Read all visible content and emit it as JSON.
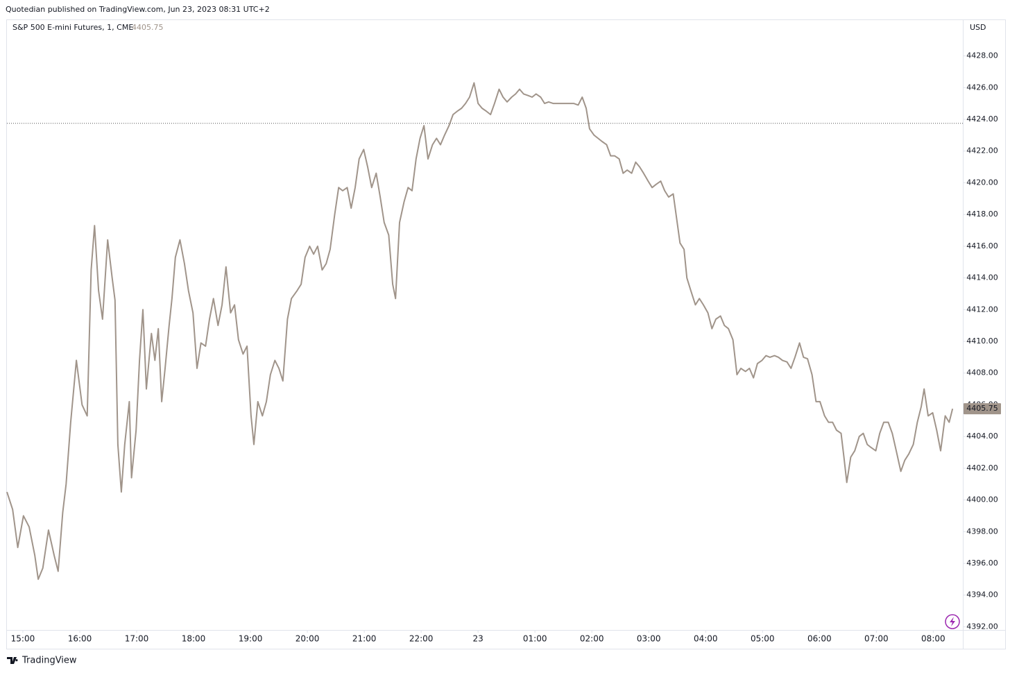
{
  "header": "Quotedian published on TradingView.com, Jun 23, 2023 08:31 UTC+2",
  "footer": "TradingView",
  "chart_data": {
    "type": "line",
    "title": "S&P 500 E-mini Futures, 1, CME",
    "currency": "USD",
    "last_price": 4405.75,
    "reference_line": 4423.75,
    "color": "#a0948a",
    "xlim": [
      -0.28,
      16.52
    ],
    "ylim": [
      4391.8,
      4430.3
    ],
    "xticks": [
      {
        "value": 0,
        "label": "15:00"
      },
      {
        "value": 1,
        "label": "16:00"
      },
      {
        "value": 2,
        "label": "17:00"
      },
      {
        "value": 3,
        "label": "18:00"
      },
      {
        "value": 4,
        "label": "19:00"
      },
      {
        "value": 5,
        "label": "20:00"
      },
      {
        "value": 6,
        "label": "21:00"
      },
      {
        "value": 7,
        "label": "22:00"
      },
      {
        "value": 8,
        "label": "23"
      },
      {
        "value": 9,
        "label": "01:00"
      },
      {
        "value": 10,
        "label": "02:00"
      },
      {
        "value": 11,
        "label": "03:00"
      },
      {
        "value": 12,
        "label": "04:00"
      },
      {
        "value": 13,
        "label": "05:00"
      },
      {
        "value": 14,
        "label": "06:00"
      },
      {
        "value": 15,
        "label": "07:00"
      },
      {
        "value": 16,
        "label": "08:00"
      }
    ],
    "yticks": [
      {
        "value": 4392,
        "label": "4392.00"
      },
      {
        "value": 4394,
        "label": "4394.00"
      },
      {
        "value": 4396,
        "label": "4396.00"
      },
      {
        "value": 4398,
        "label": "4398.00"
      },
      {
        "value": 4400,
        "label": "4400.00"
      },
      {
        "value": 4402,
        "label": "4402.00"
      },
      {
        "value": 4404,
        "label": "4404.00"
      },
      {
        "value": 4406,
        "label": "4406.00"
      },
      {
        "value": 4408,
        "label": "4408.00"
      },
      {
        "value": 4410,
        "label": "4410.00"
      },
      {
        "value": 4412,
        "label": "4412.00"
      },
      {
        "value": 4414,
        "label": "4414.00"
      },
      {
        "value": 4416,
        "label": "4416.00"
      },
      {
        "value": 4418,
        "label": "4418.00"
      },
      {
        "value": 4420,
        "label": "4420.00"
      },
      {
        "value": 4422,
        "label": "4422.00"
      },
      {
        "value": 4424,
        "label": "4424.00"
      },
      {
        "value": 4426,
        "label": "4426.00"
      },
      {
        "value": 4428,
        "label": "4428.00"
      }
    ],
    "x": [
      -0.28,
      -0.18,
      -0.09,
      0.01,
      0.11,
      0.21,
      0.27,
      0.35,
      0.45,
      0.55,
      0.62,
      0.7,
      0.76,
      0.84,
      0.94,
      1.04,
      1.13,
      1.2,
      1.26,
      1.33,
      1.4,
      1.49,
      1.57,
      1.62,
      1.67,
      1.73,
      1.79,
      1.87,
      1.91,
      1.99,
      2.05,
      2.11,
      2.17,
      2.26,
      2.32,
      2.38,
      2.44,
      2.5,
      2.57,
      2.62,
      2.68,
      2.76,
      2.84,
      2.91,
      2.99,
      3.06,
      3.13,
      3.21,
      3.28,
      3.35,
      3.43,
      3.5,
      3.57,
      3.65,
      3.72,
      3.79,
      3.87,
      3.94,
      4.01,
      4.06,
      4.13,
      4.21,
      4.28,
      4.35,
      4.43,
      4.5,
      4.57,
      4.65,
      4.72,
      4.82,
      4.89,
      4.96,
      5.04,
      5.11,
      5.18,
      5.26,
      5.33,
      5.4,
      5.48,
      5.55,
      5.62,
      5.7,
      5.77,
      5.84,
      5.91,
      5.99,
      6.06,
      6.13,
      6.21,
      6.28,
      6.35,
      6.43,
      6.5,
      6.55,
      6.62,
      6.7,
      6.77,
      6.84,
      6.91,
      6.98,
      7.05,
      7.12,
      7.2,
      7.27,
      7.34,
      7.41,
      7.49,
      7.56,
      7.63,
      7.71,
      7.78,
      7.85,
      7.93,
      8.0,
      8.07,
      8.15,
      8.22,
      8.29,
      8.37,
      8.44,
      8.51,
      8.59,
      8.66,
      8.73,
      8.8,
      8.88,
      8.95,
      9.02,
      9.1,
      9.17,
      9.24,
      9.32,
      9.39,
      9.46,
      9.54,
      9.61,
      9.68,
      9.76,
      9.83,
      9.9,
      9.96,
      10.04,
      10.11,
      10.18,
      10.26,
      10.33,
      10.4,
      10.48,
      10.55,
      10.62,
      10.7,
      10.77,
      10.84,
      10.91,
      10.99,
      11.06,
      11.13,
      11.21,
      11.28,
      11.35,
      11.43,
      11.5,
      11.55,
      11.62,
      11.67,
      11.74,
      11.82,
      11.89,
      11.96,
      12.04,
      12.11,
      12.18,
      12.26,
      12.33,
      12.4,
      12.48,
      12.55,
      12.62,
      12.7,
      12.77,
      12.84,
      12.91,
      12.99,
      13.06,
      13.13,
      13.21,
      13.28,
      13.35,
      13.43,
      13.5,
      13.57,
      13.65,
      13.72,
      13.79,
      13.87,
      13.94,
      14.01,
      14.09,
      14.16,
      14.23,
      14.3,
      14.38,
      14.43,
      14.48,
      14.55,
      14.62,
      14.7,
      14.77,
      14.84,
      14.91,
      14.99,
      15.06,
      15.13,
      15.21,
      15.28,
      15.35,
      15.43,
      15.5,
      15.57,
      15.65,
      15.72,
      15.79,
      15.84,
      15.91,
      15.99,
      16.06,
      16.13,
      16.21,
      16.28,
      16.34
    ],
    "values": [
      4400.5,
      4399.4,
      4397,
      4399,
      4398.3,
      4396.5,
      4395,
      4395.7,
      4398.1,
      4396.5,
      4395.5,
      4399.2,
      4401,
      4404.9,
      4408.8,
      4406,
      4405.3,
      4414.5,
      4417.3,
      4413.2,
      4411.4,
      4416.4,
      4414,
      4412.6,
      4403.5,
      4400.5,
      4403.5,
      4406.2,
      4401.4,
      4404.4,
      4408.8,
      4412,
      4407,
      4410.5,
      4408.8,
      4410.8,
      4406.2,
      4408.3,
      4411,
      4412.7,
      4415.3,
      4416.4,
      4414.9,
      4413.2,
      4411.8,
      4408.3,
      4409.9,
      4409.7,
      4411.4,
      4412.7,
      4411,
      4412.3,
      4414.7,
      4411.8,
      4412.3,
      4410.1,
      4409.2,
      4409.7,
      4405.3,
      4403.5,
      4406.2,
      4405.3,
      4406.2,
      4407.9,
      4408.8,
      4408.3,
      4407.5,
      4411.4,
      4412.7,
      4413.2,
      4413.6,
      4415.3,
      4416,
      4415.5,
      4416,
      4414.5,
      4414.9,
      4415.8,
      4418,
      4419.7,
      4419.5,
      4419.7,
      4418.4,
      4419.7,
      4421.5,
      4422.1,
      4421,
      4419.7,
      4420.6,
      4419.1,
      4417.5,
      4416.7,
      4413.6,
      4412.7,
      4417.5,
      4418.8,
      4419.7,
      4419.5,
      4421.5,
      4422.8,
      4423.6,
      4421.5,
      4422.4,
      4422.8,
      4422.4,
      4423,
      4423.6,
      4424.3,
      4424.5,
      4424.7,
      4425,
      4425.4,
      4426.3,
      4425,
      4424.7,
      4424.5,
      4424.3,
      4425,
      4425.9,
      4425.4,
      4425.1,
      4425.4,
      4425.6,
      4425.9,
      4425.6,
      4425.5,
      4425.4,
      4425.6,
      4425.4,
      4425,
      4425.1,
      4425,
      4425,
      4425,
      4425,
      4425,
      4425,
      4424.9,
      4425.4,
      4424.7,
      4423.4,
      4423,
      4422.8,
      4422.6,
      4422.4,
      4421.7,
      4421.7,
      4421.5,
      4420.6,
      4420.8,
      4420.6,
      4421.3,
      4421,
      4420.6,
      4420.1,
      4419.7,
      4419.9,
      4420.1,
      4419.5,
      4419.1,
      4419.3,
      4417.5,
      4416.2,
      4415.8,
      4414,
      4413.2,
      4412.3,
      4412.7,
      4412.3,
      4411.8,
      4410.8,
      4411.4,
      4411.6,
      4411,
      4410.8,
      4410.1,
      4407.9,
      4408.3,
      4408.1,
      4408.3,
      4407.7,
      4408.6,
      4408.8,
      4409.1,
      4409,
      4409.1,
      4409,
      4408.8,
      4408.7,
      4408.3,
      4409,
      4409.9,
      4409,
      4408.9,
      4407.9,
      4406.2,
      4406.2,
      4405.3,
      4404.9,
      4404.9,
      4404.4,
      4404.2,
      4402.7,
      4401.1,
      4402.7,
      4403.1,
      4404,
      4404.2,
      4403.5,
      4403.3,
      4403.1,
      4404.2,
      4404.9,
      4404.9,
      4404.2,
      4403.1,
      4401.8,
      4402.5,
      4402.9,
      4403.5,
      4404.9,
      4405.9,
      4407,
      4405.3,
      4405.5,
      4404.4,
      4403.1,
      4405.3,
      4404.9,
      4405.75
    ]
  }
}
